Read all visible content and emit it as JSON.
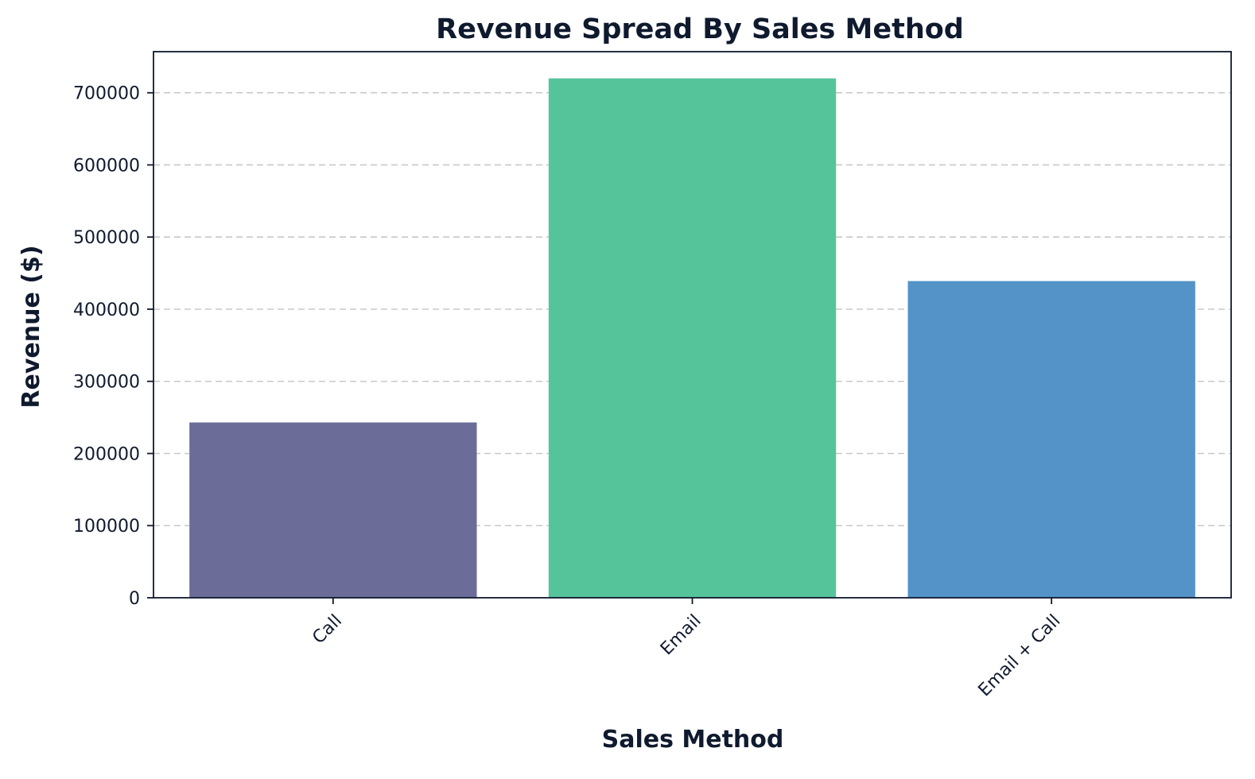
{
  "chart_data": {
    "type": "bar",
    "title": "Revenue Spread By Sales Method",
    "xlabel": "Sales Method",
    "ylabel": "Revenue ($)",
    "categories": [
      "Call",
      "Email",
      "Email + Call"
    ],
    "values": [
      243000,
      720000,
      439000
    ],
    "colors": [
      "#6b6d98",
      "#56c49b",
      "#5393c8"
    ],
    "ylim": [
      0,
      757000
    ],
    "yticks": [
      0,
      100000,
      200000,
      300000,
      400000,
      500000,
      600000,
      700000
    ],
    "ytick_labels": [
      "0",
      "100000",
      "200000",
      "300000",
      "400000",
      "500000",
      "600000",
      "700000"
    ],
    "grid": "horizontal dashed",
    "xtick_rotation": "45 degrees"
  }
}
